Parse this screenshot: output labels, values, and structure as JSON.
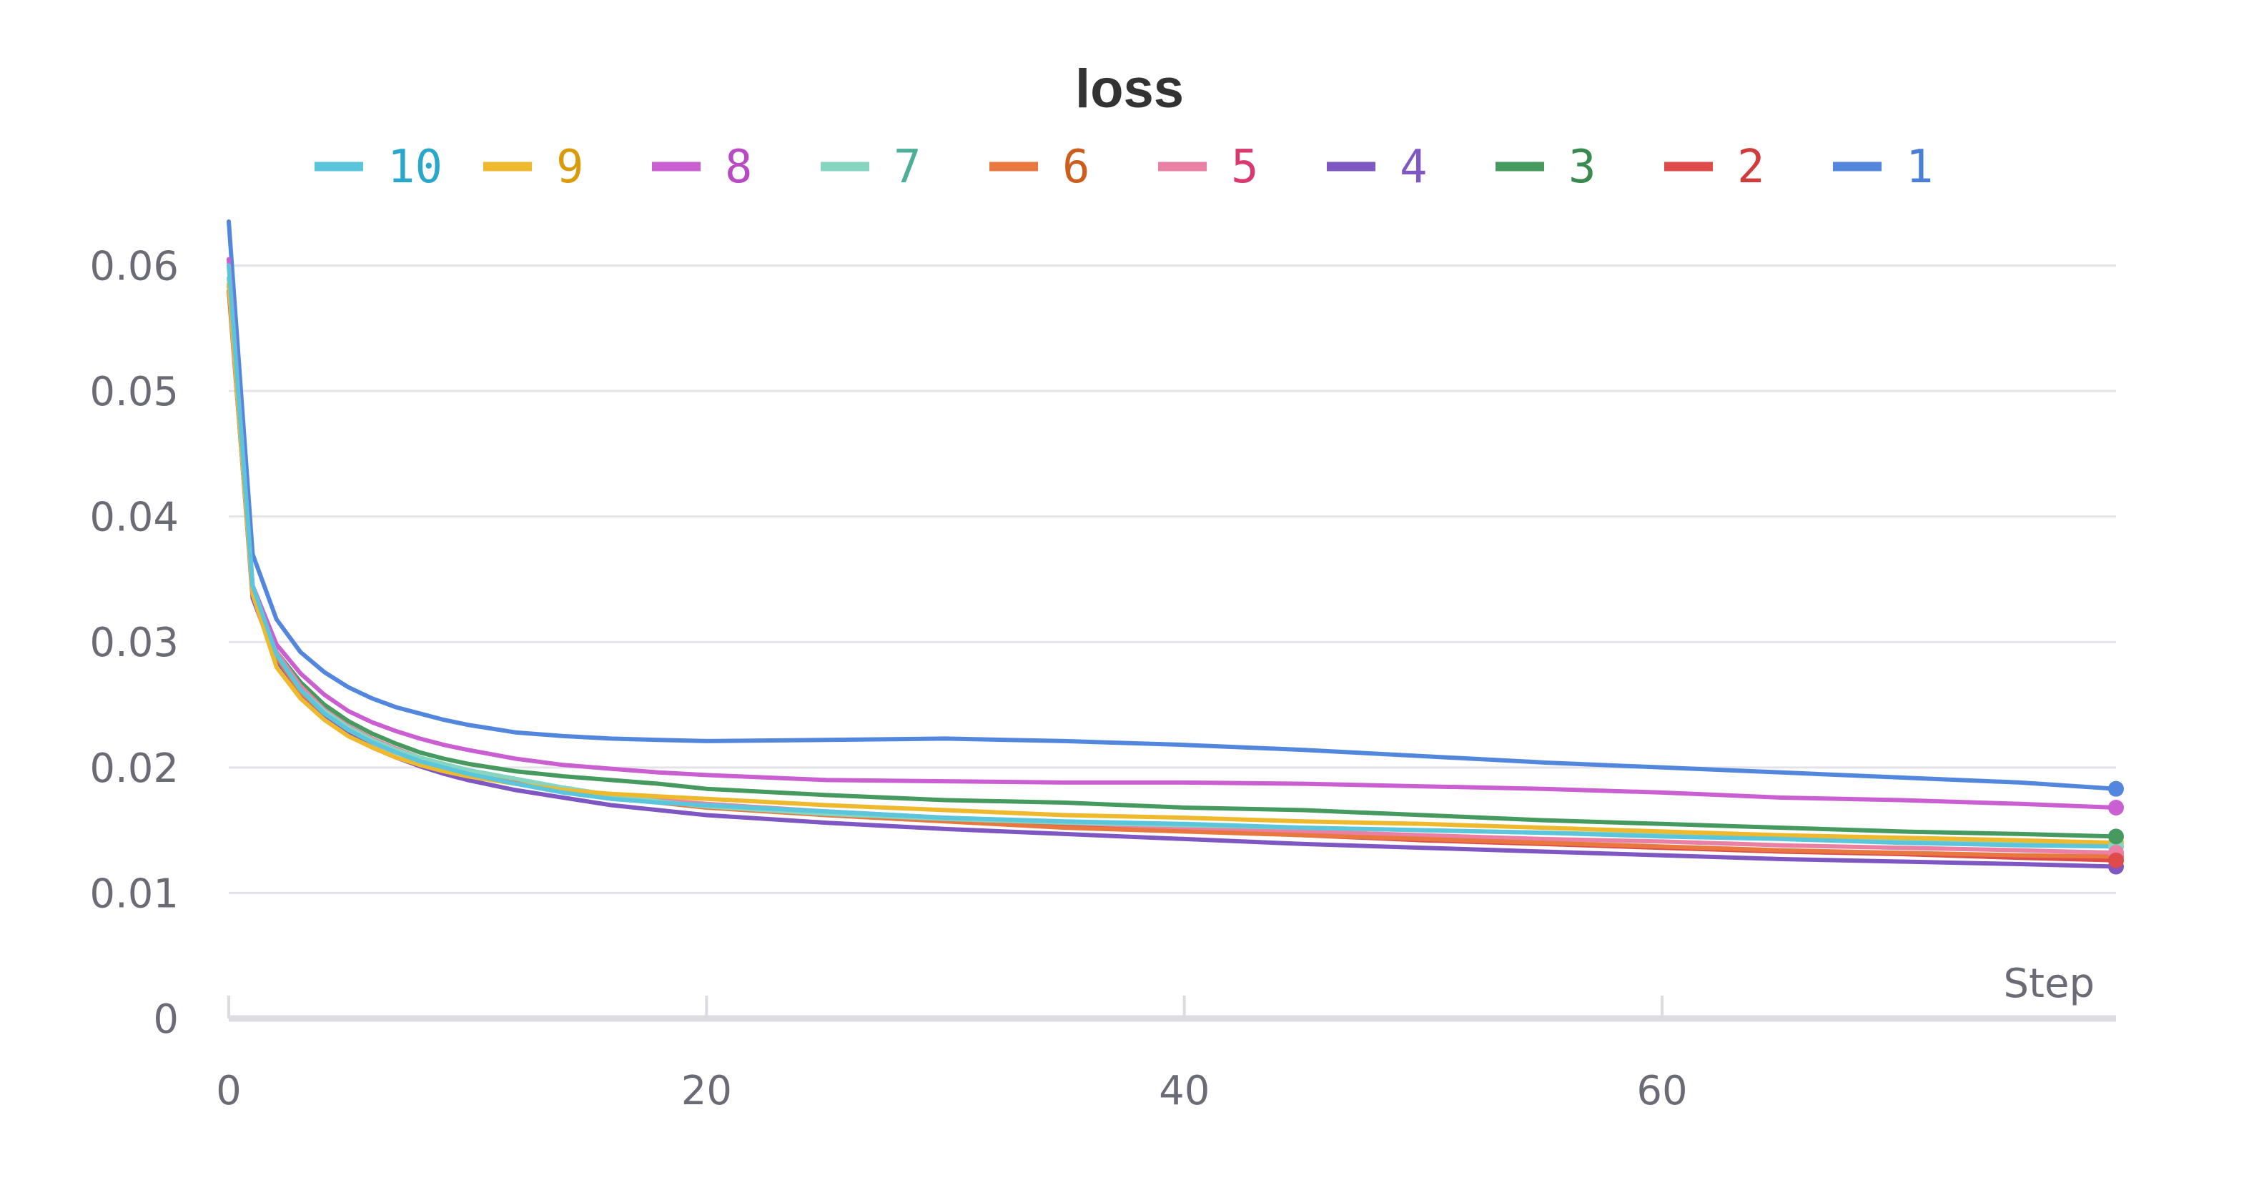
{
  "chart_data": {
    "type": "line",
    "title": "loss",
    "xlabel": "Step",
    "ylabel": "",
    "xlim": [
      0,
      79
    ],
    "ylim": [
      0,
      0.0635
    ],
    "grid": true,
    "legend_position": "top",
    "x_ticks": [
      0,
      20,
      40,
      60
    ],
    "x_tick_labels": [
      "0",
      "20",
      "40",
      "60"
    ],
    "y_ticks": [
      0,
      0.01,
      0.02,
      0.03,
      0.04,
      0.05,
      0.06
    ],
    "y_tick_labels": [
      "0",
      "0.01",
      "0.02",
      "0.03",
      "0.04",
      "0.05",
      "0.06"
    ],
    "x": [
      0,
      1,
      2,
      3,
      4,
      5,
      6,
      7,
      8,
      9,
      10,
      12,
      14,
      16,
      18,
      20,
      25,
      30,
      35,
      40,
      45,
      50,
      55,
      60,
      65,
      70,
      75,
      79
    ],
    "series": [
      {
        "name": "10",
        "color": "#5bc5db",
        "legend_text_color": "#2aa7c9",
        "values": [
          0.06,
          0.0345,
          0.029,
          0.0262,
          0.0243,
          0.023,
          0.022,
          0.0212,
          0.0205,
          0.02,
          0.0195,
          0.0187,
          0.018,
          0.0175,
          0.0172,
          0.017,
          0.0165,
          0.016,
          0.0157,
          0.0155,
          0.0152,
          0.015,
          0.0148,
          0.0145,
          0.0143,
          0.014,
          0.0138,
          0.0137
        ]
      },
      {
        "name": "9",
        "color": "#efb92e",
        "legend_text_color": "#d99a0c",
        "values": [
          0.0585,
          0.0338,
          0.028,
          0.0255,
          0.0238,
          0.0225,
          0.0216,
          0.0208,
          0.0202,
          0.0197,
          0.0193,
          0.0187,
          0.0182,
          0.0179,
          0.0177,
          0.0175,
          0.017,
          0.0166,
          0.0162,
          0.016,
          0.0157,
          0.0155,
          0.0152,
          0.0149,
          0.0146,
          0.0144,
          0.0142,
          0.014
        ]
      },
      {
        "name": "8",
        "color": "#c95fd1",
        "legend_text_color": "#b84ac4",
        "values": [
          0.0605,
          0.0345,
          0.0298,
          0.0275,
          0.0258,
          0.0245,
          0.0236,
          0.0229,
          0.0223,
          0.0218,
          0.0214,
          0.0207,
          0.0202,
          0.0199,
          0.0196,
          0.0194,
          0.019,
          0.0189,
          0.0188,
          0.0188,
          0.0187,
          0.0185,
          0.0183,
          0.018,
          0.0176,
          0.0174,
          0.0171,
          0.0168
        ]
      },
      {
        "name": "7",
        "color": "#86d5c1",
        "legend_text_color": "#4fae98",
        "values": [
          0.059,
          0.034,
          0.029,
          0.0262,
          0.0245,
          0.0232,
          0.0222,
          0.0214,
          0.0208,
          0.0203,
          0.0198,
          0.0191,
          0.0184,
          0.0178,
          0.0173,
          0.0169,
          0.0163,
          0.0159,
          0.0156,
          0.0154,
          0.0152,
          0.015,
          0.0148,
          0.0146,
          0.0144,
          0.0141,
          0.0139,
          0.0137
        ]
      },
      {
        "name": "6",
        "color": "#e8783f",
        "legend_text_color": "#cc5d1d",
        "values": [
          0.0585,
          0.034,
          0.0288,
          0.026,
          0.0243,
          0.023,
          0.022,
          0.0212,
          0.0205,
          0.02,
          0.0196,
          0.0188,
          0.0182,
          0.0177,
          0.0172,
          0.0168,
          0.0162,
          0.0157,
          0.0152,
          0.0149,
          0.0146,
          0.0143,
          0.014,
          0.0137,
          0.0134,
          0.0132,
          0.013,
          0.0129
        ]
      },
      {
        "name": "5",
        "color": "#ea80a3",
        "legend_text_color": "#d83a6e",
        "values": [
          0.059,
          0.0342,
          0.0292,
          0.0265,
          0.0246,
          0.0233,
          0.0223,
          0.0215,
          0.0208,
          0.0202,
          0.0197,
          0.0189,
          0.0183,
          0.0178,
          0.0174,
          0.0171,
          0.0165,
          0.016,
          0.0156,
          0.0152,
          0.0149,
          0.0146,
          0.0143,
          0.0141,
          0.0138,
          0.0136,
          0.0134,
          0.0132
        ]
      },
      {
        "name": "4",
        "color": "#7e57c2",
        "legend_text_color": "#7e57c2",
        "values": [
          0.0585,
          0.0335,
          0.0285,
          0.0258,
          0.024,
          0.0226,
          0.0216,
          0.0208,
          0.0201,
          0.0195,
          0.019,
          0.0182,
          0.0176,
          0.017,
          0.0166,
          0.0162,
          0.0156,
          0.0151,
          0.0147,
          0.0143,
          0.0139,
          0.0136,
          0.0133,
          0.013,
          0.0127,
          0.0125,
          0.0123,
          0.0121
        ]
      },
      {
        "name": "3",
        "color": "#479a5f",
        "legend_text_color": "#3a8a50",
        "values": [
          0.0585,
          0.034,
          0.0292,
          0.0268,
          0.025,
          0.0237,
          0.0227,
          0.0219,
          0.0212,
          0.0207,
          0.0203,
          0.0197,
          0.0193,
          0.019,
          0.0187,
          0.0183,
          0.0178,
          0.0174,
          0.0172,
          0.0168,
          0.0166,
          0.0162,
          0.0158,
          0.0155,
          0.0152,
          0.0149,
          0.0147,
          0.0145
        ]
      },
      {
        "name": "2",
        "color": "#df4b4b",
        "legend_text_color": "#d03b3b",
        "values": [
          0.058,
          0.034,
          0.0288,
          0.026,
          0.0242,
          0.0229,
          0.022,
          0.0212,
          0.0205,
          0.02,
          0.0196,
          0.0188,
          0.0183,
          0.0178,
          0.0174,
          0.017,
          0.0164,
          0.0159,
          0.0154,
          0.015,
          0.0146,
          0.0142,
          0.0139,
          0.0136,
          0.0133,
          0.0131,
          0.0128,
          0.0126
        ]
      },
      {
        "name": "1",
        "color": "#5387dd",
        "legend_text_color": "#4b7fd6",
        "values": [
          0.0635,
          0.037,
          0.0318,
          0.0292,
          0.0276,
          0.0264,
          0.0255,
          0.0248,
          0.0243,
          0.0238,
          0.0234,
          0.0228,
          0.0225,
          0.0223,
          0.0222,
          0.0221,
          0.0222,
          0.0223,
          0.0221,
          0.0218,
          0.0214,
          0.0209,
          0.0204,
          0.02,
          0.0196,
          0.0192,
          0.0188,
          0.0183
        ]
      }
    ]
  }
}
